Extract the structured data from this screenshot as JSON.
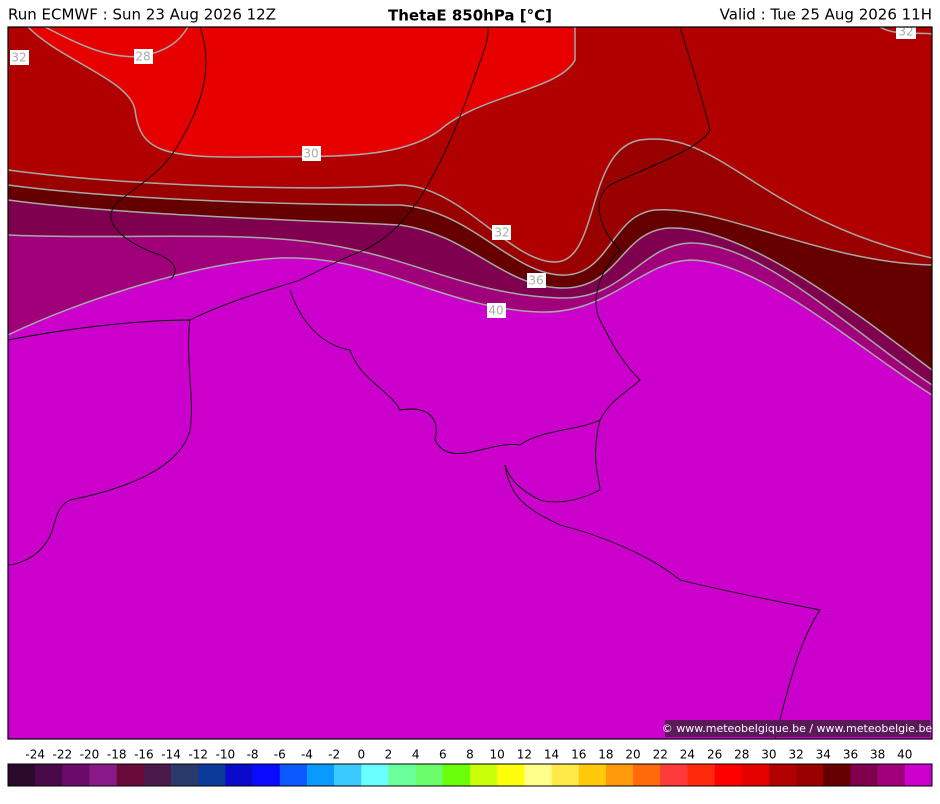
{
  "header": {
    "left": "Run ECMWF : Sun 23 Aug 2026 12Z",
    "title": "ThetaE 850hPa [°C]",
    "right": "Valid : Tue 25 Aug 2026 11H"
  },
  "map": {
    "contour_labels": [
      32,
      28,
      30,
      32,
      36,
      40,
      32
    ],
    "credit": "© www.meteobelgique.be / www.meteobelgie.be"
  },
  "colorbar": {
    "ticks": [
      -24,
      -22,
      -20,
      -18,
      -16,
      -14,
      -12,
      -10,
      -8,
      -6,
      -4,
      -2,
      0,
      2,
      4,
      6,
      8,
      10,
      12,
      14,
      16,
      18,
      20,
      22,
      24,
      26,
      28,
      30,
      32,
      34,
      36,
      38,
      40
    ],
    "colors": [
      "#2a0a2a",
      "#4a0a4a",
      "#6a0a6a",
      "#8a1a8a",
      "#6a0a3a",
      "#4a1a4a",
      "#2a3a6a",
      "#0a3a9a",
      "#0a0acc",
      "#0a0aff",
      "#0a5aff",
      "#0a9aff",
      "#3acaff",
      "#6affff",
      "#6aff9a",
      "#6aff6a",
      "#6aff0a",
      "#caff0a",
      "#ffff0a",
      "#ffff8a",
      "#ffea4a",
      "#ffca0a",
      "#ff9a0a",
      "#ff6a0a",
      "#ff3a3a",
      "#ff2a0a",
      "#ff0000",
      "#e60000",
      "#b00000",
      "#990000",
      "#660000",
      "#800050",
      "#a0007a",
      "#cc00cc"
    ]
  }
}
